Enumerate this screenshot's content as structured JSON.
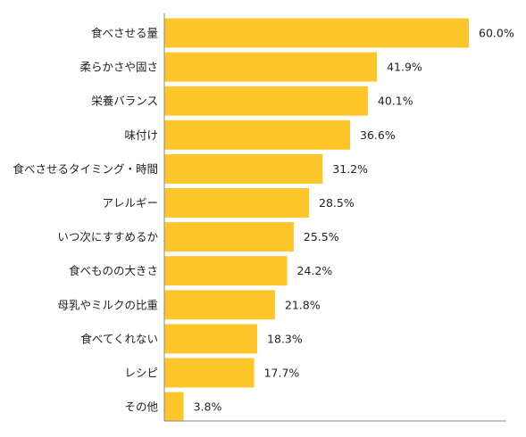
{
  "chart_data": {
    "type": "bar",
    "orientation": "horizontal",
    "categories": [
      "食べさせる量",
      "柔らかさや固さ",
      "栄養バランス",
      "味付け",
      "食べさせるタイミング・時間",
      "アレルギー",
      "いつ次にすすめるか",
      "食べものの大きさ",
      "母乳やミルクの比重",
      "食べてくれない",
      "レシピ",
      "その他"
    ],
    "values": [
      60.0,
      41.9,
      40.1,
      36.6,
      31.2,
      28.5,
      25.5,
      24.2,
      21.8,
      18.3,
      17.7,
      3.8
    ],
    "value_labels": [
      "60.0%",
      "41.9%",
      "40.1%",
      "36.6%",
      "31.2%",
      "28.5%",
      "25.5%",
      "24.2%",
      "21.8%",
      "18.3%",
      "17.7%",
      "3.8%"
    ],
    "xlim": [
      0,
      70
    ],
    "grid": false,
    "bar_color": "#FFC62B",
    "axis_color": "#888888"
  }
}
